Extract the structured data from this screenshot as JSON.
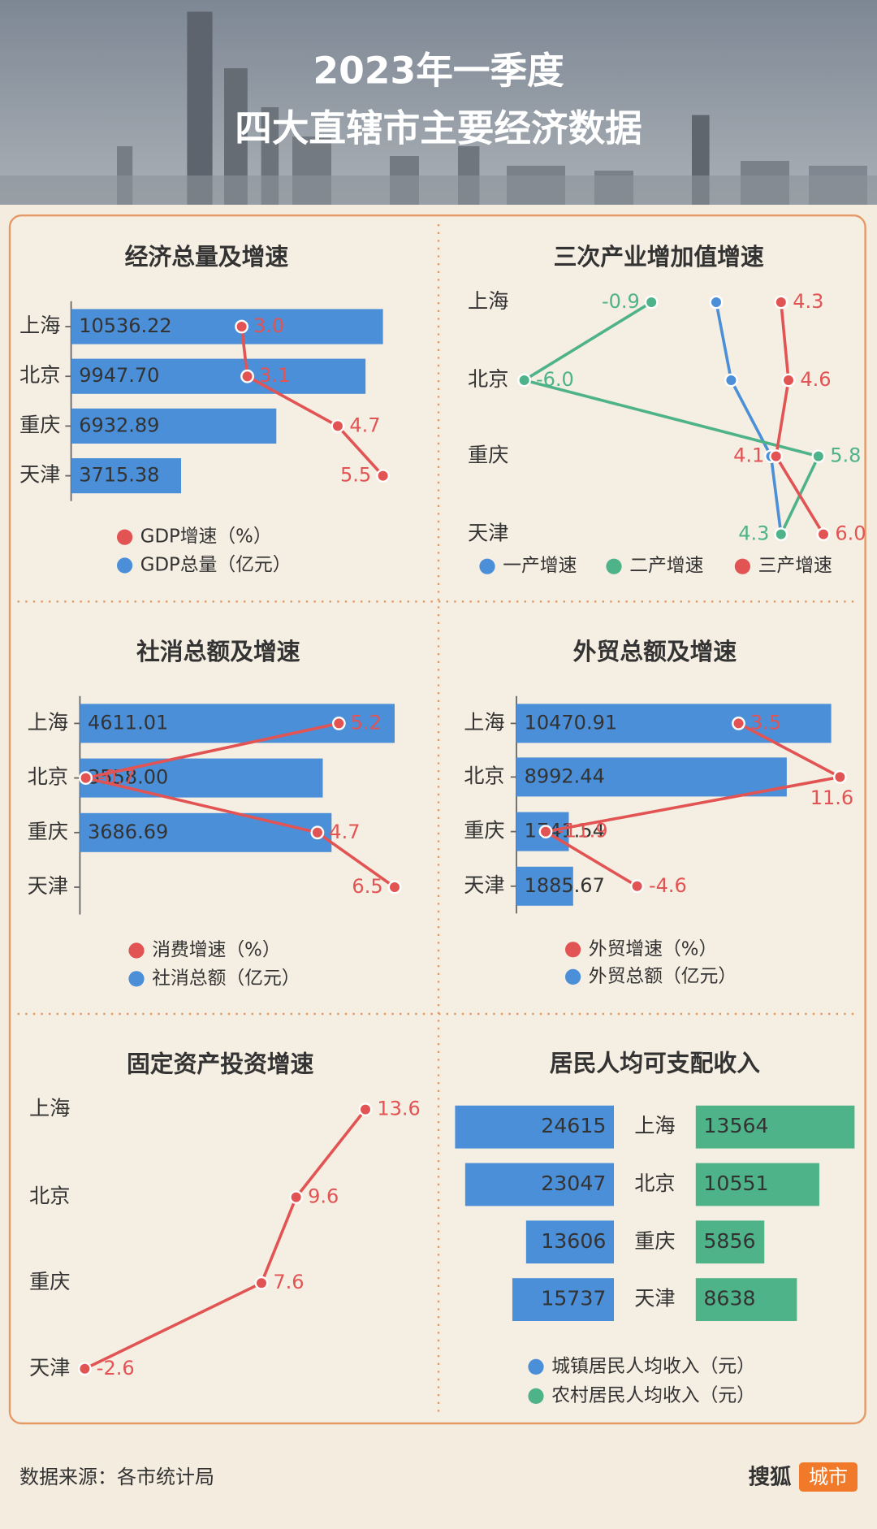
{
  "header": {
    "title_line1": "2023年一季度",
    "title_line2": "四大直辖市主要经济数据"
  },
  "chart_data": [
    {
      "type": "combo",
      "title": "经济总量及增速",
      "categories": [
        "上海",
        "北京",
        "重庆",
        "天津"
      ],
      "series": [
        {
          "name": "GDP增速（%）",
          "type": "line",
          "color": "#e25454",
          "values": [
            3.0,
            3.1,
            4.7,
            5.5
          ],
          "value_labels": [
            "3.0",
            "3.1",
            "4.7",
            "5.5"
          ]
        },
        {
          "name": "GDP总量（亿元）",
          "type": "bar",
          "color": "#4a8fd8",
          "values": [
            10536.22,
            9947.7,
            6932.89,
            3715.38
          ],
          "value_labels": [
            "10536.22",
            "9947.70",
            "6932.89",
            "3715.38"
          ]
        }
      ]
    },
    {
      "type": "line",
      "title": "三次产业增加值增速",
      "categories": [
        "上海",
        "北京",
        "重庆",
        "天津"
      ],
      "series": [
        {
          "name": "一产增速",
          "color": "#4a8fd8",
          "values": [
            1.7,
            2.3,
            3.9,
            4.3
          ]
        },
        {
          "name": "二产增速",
          "color": "#4fb38a",
          "values": [
            -0.9,
            -6.0,
            5.8,
            4.3
          ],
          "value_labels": [
            "-0.9",
            "-6.0",
            "5.8",
            "4.3"
          ]
        },
        {
          "name": "三产增速",
          "color": "#e25454",
          "values": [
            4.3,
            4.6,
            4.1,
            6.0
          ],
          "value_labels": [
            "4.3",
            "4.6",
            "4.1",
            "6.0"
          ]
        }
      ]
    },
    {
      "type": "combo",
      "title": "社消总额及增速",
      "categories": [
        "上海",
        "北京",
        "重庆",
        "天津"
      ],
      "series": [
        {
          "name": "消费增速（%）",
          "type": "line",
          "color": "#e25454",
          "values": [
            5.2,
            -0.7,
            4.7,
            6.5
          ]
        },
        {
          "name": "社消总额（亿元）",
          "type": "bar",
          "color": "#4a8fd8",
          "values": [
            4611.01,
            3558.0,
            3686.69,
            null
          ],
          "value_labels": [
            "4611.01",
            "3558.00",
            "3686.69",
            null
          ]
        }
      ]
    },
    {
      "type": "combo",
      "title": "外贸总额及增速",
      "categories": [
        "上海",
        "北京",
        "重庆",
        "天津"
      ],
      "series": [
        {
          "name": "外贸增速（%）",
          "type": "line",
          "color": "#e25454",
          "values": [
            3.5,
            11.6,
            -11.9,
            -4.6
          ]
        },
        {
          "name": "外贸总额（亿元）",
          "type": "bar",
          "color": "#4a8fd8",
          "values": [
            10470.91,
            8992.44,
            1741.54,
            1885.67
          ],
          "value_labels": [
            "10470.91",
            "8992.44",
            "1741.54",
            "1885.67"
          ]
        }
      ]
    },
    {
      "type": "line",
      "title": "固定资产投资增速",
      "categories": [
        "上海",
        "北京",
        "重庆",
        "天津"
      ],
      "series": [
        {
          "color": "#e25454",
          "values": [
            13.6,
            9.6,
            7.6,
            -2.6
          ]
        }
      ]
    },
    {
      "type": "butterfly",
      "title": "居民人均可支配收入",
      "categories": [
        "上海",
        "北京",
        "重庆",
        "天津"
      ],
      "series": [
        {
          "name": "城镇居民人均收入（元）",
          "color": "#4a8fd8",
          "values": [
            24615,
            23047,
            13606,
            15737
          ]
        },
        {
          "name": "农村居民人均收入（元）",
          "color": "#4fb38a",
          "values": [
            13564,
            10551,
            5856,
            8638
          ]
        }
      ]
    }
  ],
  "footer": {
    "source": "数据来源：各市统计局",
    "brand": "搜狐",
    "badge": "城市"
  }
}
